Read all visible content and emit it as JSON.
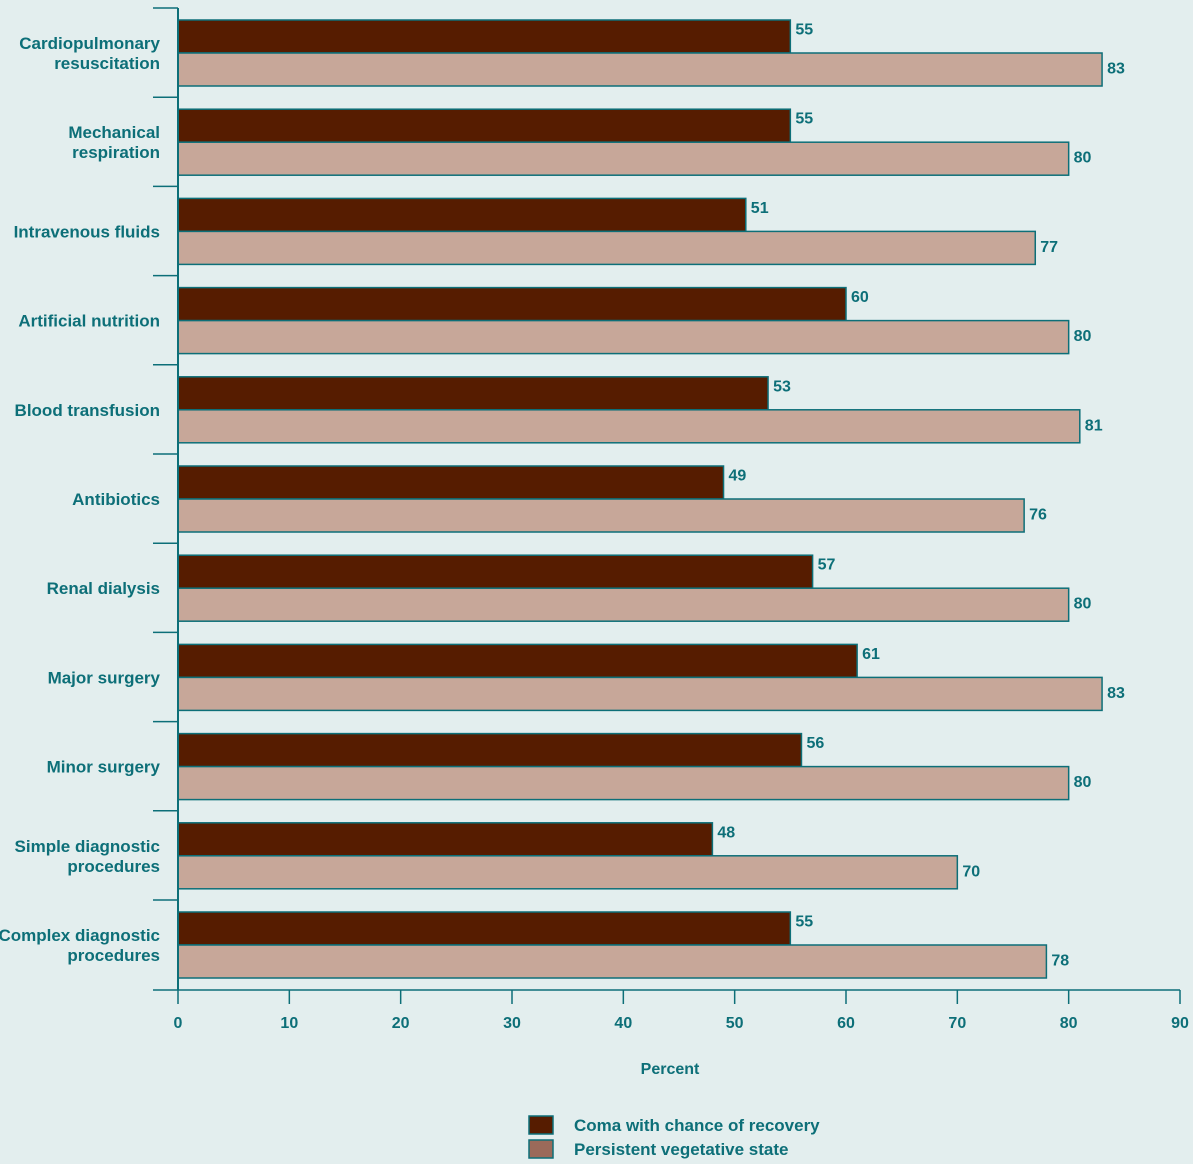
{
  "chart_data": {
    "type": "bar",
    "orientation": "horizontal",
    "categories": [
      [
        "Cardiopulmonary",
        "resuscitation"
      ],
      [
        "Mechanical",
        "respiration"
      ],
      [
        "Intravenous fluids"
      ],
      [
        "Artificial nutrition"
      ],
      [
        "Blood transfusion"
      ],
      [
        "Antibiotics"
      ],
      [
        "Renal dialysis"
      ],
      [
        "Major surgery"
      ],
      [
        "Minor surgery"
      ],
      [
        "Simple diagnostic",
        "procedures"
      ],
      [
        "Complex diagnostic",
        "procedures"
      ]
    ],
    "series": [
      {
        "name": "Coma with chance of recovery",
        "color": "#561c00",
        "values": [
          55,
          55,
          51,
          60,
          53,
          49,
          57,
          61,
          56,
          48,
          55
        ]
      },
      {
        "name": "Persistent vegetative state",
        "color": "#c7a799",
        "values": [
          83,
          80,
          77,
          80,
          81,
          76,
          80,
          83,
          80,
          70,
          78
        ]
      }
    ],
    "xlabel": "Percent",
    "xlim": [
      0,
      90
    ],
    "xticks": [
      0,
      10,
      20,
      30,
      40,
      50,
      60,
      70,
      80,
      90
    ],
    "legend_position": "bottom-center",
    "grid": false,
    "axis_color": "#0d6f78",
    "text_color": "#0d6f78"
  }
}
